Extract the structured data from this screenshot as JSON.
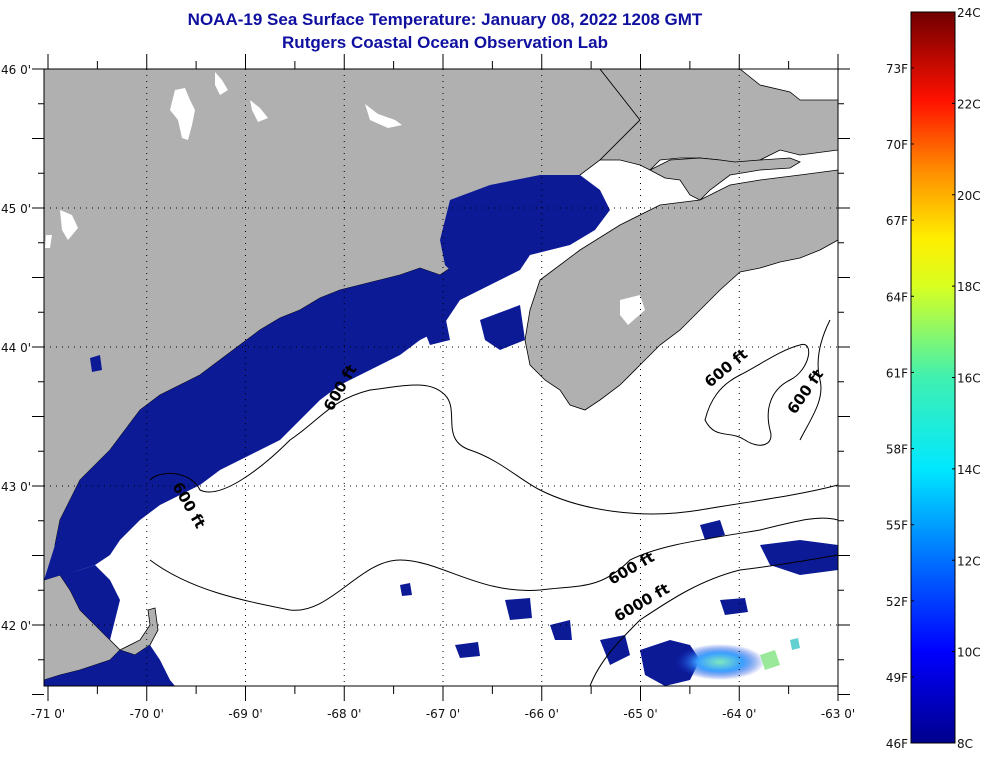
{
  "header": {
    "title": "NOAA-19 Sea Surface Temperature:  January 08, 2022 1208 GMT",
    "subtitle": "Rutgers Coastal Ocean Observation Lab"
  },
  "map": {
    "lon_range": [
      -71,
      -63
    ],
    "lat_range": [
      41.5,
      46
    ],
    "lon_ticks": [
      "-71 0'",
      "-70 0'",
      "-69 0'",
      "-68 0'",
      "-67 0'",
      "-66 0'",
      "-65 0'",
      "-64 0'",
      "-63 0'"
    ],
    "lat_ticks": [
      "46 0'",
      "45 0'",
      "44 0'",
      "43 0'",
      "42 0'"
    ],
    "contour_labels": [
      "600 ft",
      "600 ft",
      "600 ft",
      "600 ft",
      "600 ft",
      "6000 ft"
    ],
    "colors": {
      "land": "#b0b0b0",
      "cloud": "#ffffff",
      "water_cold": "#0a1890",
      "coast": "#000000"
    }
  },
  "colorbar": {
    "celsius_labels": [
      "24C",
      "22C",
      "20C",
      "18C",
      "16C",
      "14C",
      "12C",
      "10C",
      "8C"
    ],
    "fahrenheit_labels": [
      "73F",
      "70F",
      "67F",
      "64F",
      "61F",
      "58F",
      "55F",
      "52F",
      "49F",
      "46F"
    ],
    "range_c": [
      8,
      24
    ],
    "fahrenheit_values": [
      73,
      70,
      67,
      64,
      61,
      58,
      55,
      52,
      49,
      46
    ]
  }
}
